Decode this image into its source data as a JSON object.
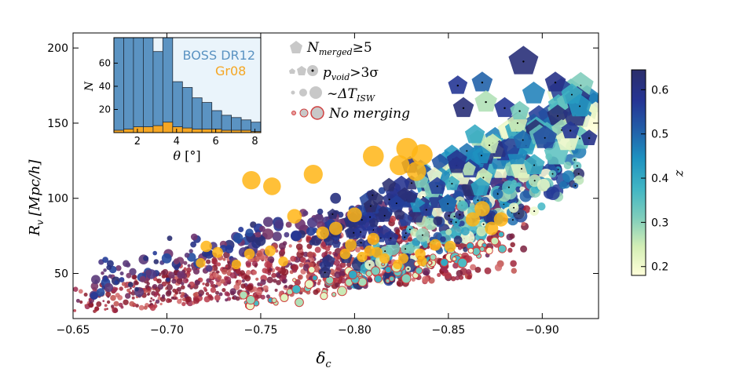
{
  "chart_data": [
    {
      "type": "scatter",
      "name": "main",
      "xlabel": "δ",
      "xlabel_sub": "c",
      "ylabel_main": "R",
      "ylabel_sub": "v",
      "ylabel_unit": "[Mpc/h]",
      "xlim": [
        -0.65,
        -0.93
      ],
      "ylim": [
        20,
        210
      ],
      "xticks": [
        -0.65,
        -0.7,
        -0.75,
        -0.8,
        -0.85,
        -0.9
      ],
      "xtick_labels": [
        "−0.65",
        "−0.70",
        "−0.75",
        "−0.80",
        "−0.85",
        "−0.90"
      ],
      "yticks": [
        50,
        100,
        150,
        200
      ],
      "ytick_labels": [
        "50",
        "100",
        "150",
        "200"
      ],
      "series": [
        {
          "name": "Gr08",
          "color": "#FFB515",
          "points": [
            [
              -0.745,
              112
            ],
            [
              -0.756,
              108
            ],
            [
              -0.778,
              116
            ],
            [
              -0.81,
              128
            ],
            [
              -0.828,
              133
            ],
            [
              -0.836,
              129
            ],
            [
              -0.824,
              122
            ],
            [
              -0.833,
              118
            ],
            [
              -0.8,
              89
            ],
            [
              -0.79,
              80
            ],
            [
              -0.768,
              88
            ],
            [
              -0.783,
              77
            ],
            [
              -0.798,
              69
            ],
            [
              -0.808,
              65
            ],
            [
              -0.816,
              60
            ],
            [
              -0.823,
              56
            ],
            [
              -0.835,
              63
            ],
            [
              -0.843,
              69
            ],
            [
              -0.851,
              68
            ],
            [
              -0.81,
              73
            ],
            [
              -0.868,
              93
            ],
            [
              -0.878,
              86
            ],
            [
              -0.873,
              80
            ],
            [
              -0.863,
              86
            ],
            [
              -0.755,
              65
            ],
            [
              -0.744,
              63
            ],
            [
              -0.727,
              64
            ],
            [
              -0.721,
              68
            ],
            [
              -0.795,
              63
            ],
            [
              -0.804,
              61
            ],
            [
              -0.812,
              64
            ],
            [
              -0.826,
              60
            ],
            [
              -0.836,
              58
            ],
            [
              -0.718,
              57
            ],
            [
              -0.737,
              56
            ],
            [
              -0.762,
              58
            ]
          ]
        }
      ],
      "colorbar": {
        "label": "z",
        "range": [
          0.18,
          0.645
        ],
        "ticks": [
          0.2,
          0.3,
          0.4,
          0.5,
          0.6
        ],
        "tick_labels": [
          "0.2",
          "0.3",
          "0.4",
          "0.5",
          "0.6"
        ],
        "colors": [
          "#FFFFD9",
          "#D3EEB5",
          "#7FCDBB",
          "#41B6C4",
          "#1D91C0",
          "#225EA8",
          "#253494",
          "#2B2E6B"
        ]
      },
      "legend": {
        "position": "top-center",
        "entries": [
          {
            "main": "N",
            "sub": "merged",
            "rest": "≥5"
          },
          {
            "main": "p",
            "sub": "void",
            "rest": ">3σ"
          },
          {
            "main": "∼ΔT",
            "sub": "ISW",
            "rest": ""
          },
          {
            "main": "No merging",
            "sub": "",
            "rest": ""
          }
        ]
      },
      "notes": "Hundreds of additional small dark-red/purple circles (unmerged voids), coloured circles and blue pentagons sized by ΔT_ISW and coloured by z are drawn as a dense point cloud rising from lower-left to upper-right."
    },
    {
      "type": "bar",
      "name": "inset-histogram",
      "xlabel": "θ",
      "xlabel_unit": "[°]",
      "ylabel": "N",
      "xlim": [
        0.8,
        8.3
      ],
      "ylim": [
        0,
        82
      ],
      "xticks": [
        2,
        4,
        6,
        8
      ],
      "xtick_labels": [
        "2",
        "4",
        "6",
        "8"
      ],
      "yticks": [
        20,
        40,
        60
      ],
      "ytick_labels": [
        "20",
        "40",
        "60"
      ],
      "bin_edges": [
        0.8,
        1.3,
        1.8,
        2.3,
        2.8,
        3.3,
        3.8,
        4.3,
        4.8,
        5.3,
        5.8,
        6.3,
        6.8,
        7.3,
        7.8,
        8.3
      ],
      "series": [
        {
          "name": "BOSS DR12",
          "color": "#5B93C2",
          "values": [
            82,
            82,
            82,
            82,
            70,
            82,
            44,
            39,
            30,
            26,
            19,
            15,
            13,
            11,
            9
          ]
        },
        {
          "name": "Gr08",
          "color": "#F5A623",
          "values": [
            2,
            3,
            5,
            5,
            6,
            9,
            5,
            4,
            3,
            3,
            3,
            2,
            2,
            2,
            1
          ]
        }
      ]
    }
  ]
}
